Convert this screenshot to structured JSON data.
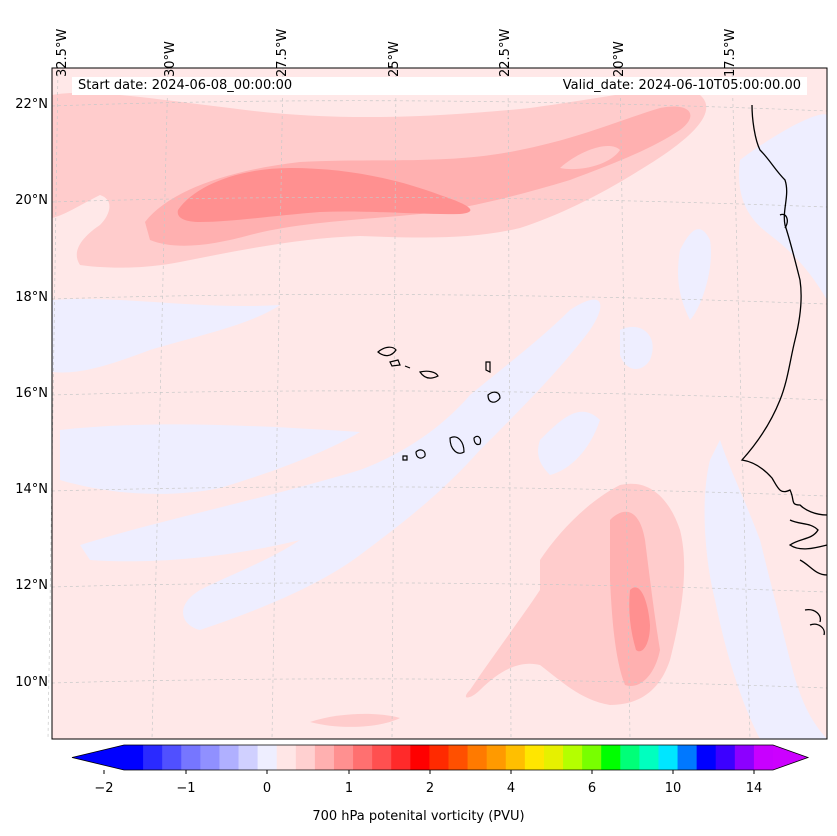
{
  "header": {
    "start_date": "Start date: 2024-06-08_00:00:00",
    "valid_date": "Valid_date: 2024-06-10T05:00:00.00"
  },
  "longitude_labels": [
    "32.5°W",
    "30°W",
    "27.5°W",
    "25°W",
    "22.5°W",
    "20°W",
    "17.5°W"
  ],
  "latitude_labels": [
    "22°N",
    "20°N",
    "18°N",
    "16°N",
    "14°N",
    "12°N",
    "10°N"
  ],
  "colorbar": {
    "label": "700 hPa potenital vorticity (PVU)",
    "ticks": [
      "−2",
      "−1",
      "0",
      "1",
      "2",
      "4",
      "6",
      "10",
      "14"
    ],
    "colors": [
      "#0000ff",
      "#2a2aff",
      "#5050ff",
      "#7676ff",
      "#9090ff",
      "#b0b0ff",
      "#d0d0ff",
      "#eeeeff",
      "#ffe6e6",
      "#ffd0d0",
      "#ffb0b0",
      "#ff9090",
      "#ff7070",
      "#ff5050",
      "#ff2a2a",
      "#ff0000",
      "#ff2a00",
      "#ff5000",
      "#ff7a00",
      "#ff9a00",
      "#ffbf00",
      "#ffe600",
      "#e6f000",
      "#b4ff00",
      "#78ff00",
      "#00ff00",
      "#00ff78",
      "#00ffbf",
      "#00e6ff",
      "#0078ff",
      "#0000ff",
      "#3c00ff",
      "#8c00ff",
      "#c800ff"
    ],
    "extend_low_color": "#0000ff",
    "extend_high_color": "#cc00ff"
  },
  "colors": {
    "background_field": "#ffe8e8",
    "light_blue_field": "#eeeeff",
    "pink_level1": "#ffcccc",
    "pink_level2": "#ffb0b0",
    "pink_level3": "#ff9090",
    "coastline": "#000000",
    "gridline": "#c8c8c8"
  }
}
